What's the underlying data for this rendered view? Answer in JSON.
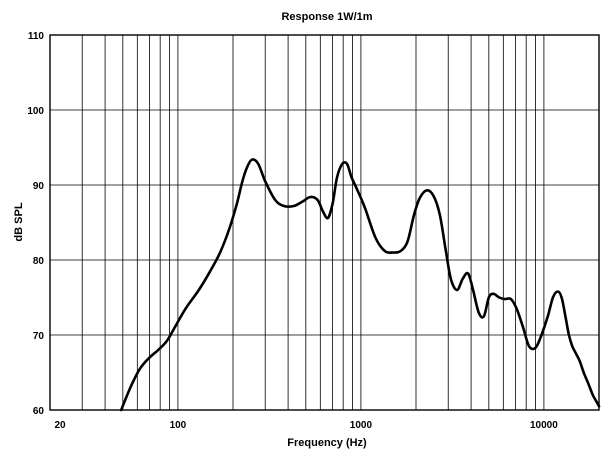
{
  "chart_data": {
    "type": "line",
    "title": "Response 1W/1m",
    "xlabel": "Frequency (Hz)",
    "ylabel": "dB SPL",
    "x_scale": "log",
    "xlim": [
      20,
      20000
    ],
    "ylim": [
      60,
      110
    ],
    "grid": true,
    "x_tick_labels": [
      {
        "value": 20,
        "label": "20"
      },
      {
        "value": 100,
        "label": "100"
      },
      {
        "value": 1000,
        "label": "1000"
      },
      {
        "value": 10000,
        "label": "10000"
      }
    ],
    "y_tick_labels": [
      {
        "value": 60,
        "label": "60"
      },
      {
        "value": 70,
        "label": "70"
      },
      {
        "value": 80,
        "label": "80"
      },
      {
        "value": 90,
        "label": "90"
      },
      {
        "value": 100,
        "label": "100"
      },
      {
        "value": 110,
        "label": "110"
      }
    ],
    "series": [
      {
        "color": "#000000",
        "x": [
          49,
          55,
          62,
          70,
          78,
          87,
          96,
          110,
          130,
          150,
          170,
          190,
          210,
          225,
          240,
          255,
          275,
          300,
          340,
          380,
          430,
          480,
          530,
          580,
          620,
          660,
          700,
          740,
          790,
          840,
          890,
          950,
          1050,
          1200,
          1350,
          1500,
          1650,
          1800,
          1950,
          2100,
          2300,
          2500,
          2700,
          2900,
          3100,
          3350,
          3600,
          3850,
          4100,
          4400,
          4700,
          5000,
          5300,
          5700,
          6100,
          6600,
          7100,
          7700,
          8300,
          9000,
          9700,
          10500,
          11200,
          11900,
          12500,
          13100,
          13700,
          14300,
          15000,
          15700,
          16500,
          17500,
          18500,
          19500,
          20000
        ],
        "y": [
          60,
          63,
          65.5,
          67,
          68,
          69.2,
          71,
          73.5,
          76,
          78.5,
          81,
          84,
          87.5,
          90.5,
          92.5,
          93.4,
          92.8,
          90.5,
          88,
          87.2,
          87.2,
          87.8,
          88.4,
          88,
          86.5,
          85.6,
          87.5,
          91,
          92.8,
          92.8,
          91,
          89.5,
          87,
          83,
          81.2,
          81,
          81.2,
          82.5,
          86,
          88.3,
          89.3,
          88.5,
          86,
          81.5,
          77.5,
          76,
          77.5,
          78.2,
          76,
          73,
          72.5,
          75,
          75.5,
          75,
          74.8,
          74.8,
          73.5,
          71,
          68.5,
          68.3,
          70,
          72.5,
          75,
          75.8,
          75,
          72.5,
          70,
          68.5,
          67.5,
          66.5,
          65,
          63.5,
          62,
          61,
          60.5
        ]
      }
    ]
  }
}
